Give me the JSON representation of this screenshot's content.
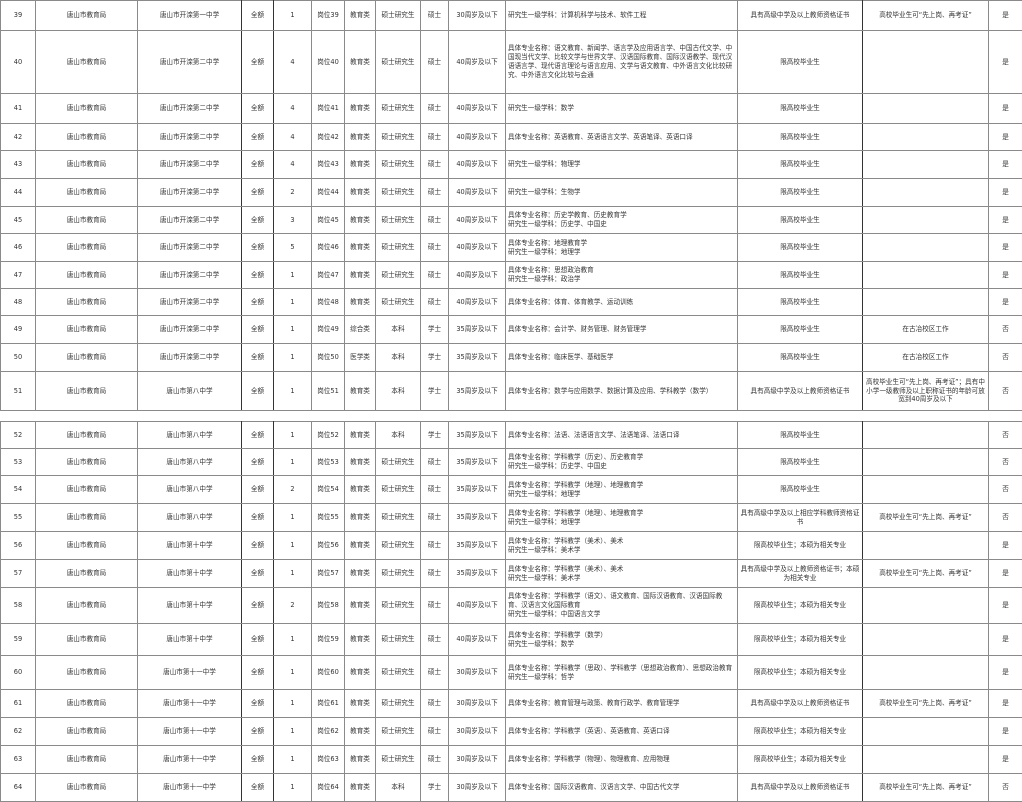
{
  "sections": [
    {
      "rows": [
        {
          "no": "39",
          "dept": "唐山市教育局",
          "unit": "唐山市开滦第一中学",
          "fund": "全额",
          "count": "1",
          "post": "岗位39",
          "type": "教育类",
          "edu": "硕士研究生",
          "degree": "硕士",
          "age": "30周岁及以下",
          "major": "研究生一级学科：计算机科学与技术、软件工程",
          "cond": "具有高级中学及以上教师资格证书",
          "remark": "高校毕业生可“先上岗、再考证”",
          "flag": "是"
        },
        {
          "no": "40",
          "dept": "唐山市教育局",
          "unit": "唐山市开滦第二中学",
          "fund": "全额",
          "count": "4",
          "post": "岗位40",
          "type": "教育类",
          "edu": "硕士研究生",
          "degree": "硕士",
          "age": "40周岁及以下",
          "major": "具体专业名称：语文教育、新闻学、语言学及应用语言学、中国古代文学、中国现当代文学、比较文学与世界文学、汉语国际教育、国际汉语教学、现代汉语语言学、现代语言理论与语言应用、文学与语文教育、中外语言文化比较研究、中外语言文化比较与会通",
          "cond": "限高校毕业生",
          "remark": "",
          "flag": "是"
        },
        {
          "no": "41",
          "dept": "唐山市教育局",
          "unit": "唐山市开滦第二中学",
          "fund": "全额",
          "count": "4",
          "post": "岗位41",
          "type": "教育类",
          "edu": "硕士研究生",
          "degree": "硕士",
          "age": "40周岁及以下",
          "major": "研究生一级学科：数学",
          "cond": "限高校毕业生",
          "remark": "",
          "flag": "是"
        },
        {
          "no": "42",
          "dept": "唐山市教育局",
          "unit": "唐山市开滦第二中学",
          "fund": "全额",
          "count": "4",
          "post": "岗位42",
          "type": "教育类",
          "edu": "硕士研究生",
          "degree": "硕士",
          "age": "40周岁及以下",
          "major": "具体专业名称：英语教育、英语语言文学、英语笔译、英语口译",
          "cond": "限高校毕业生",
          "remark": "",
          "flag": "是"
        },
        {
          "no": "43",
          "dept": "唐山市教育局",
          "unit": "唐山市开滦第二中学",
          "fund": "全额",
          "count": "4",
          "post": "岗位43",
          "type": "教育类",
          "edu": "硕士研究生",
          "degree": "硕士",
          "age": "40周岁及以下",
          "major": "研究生一级学科：物理学",
          "cond": "限高校毕业生",
          "remark": "",
          "flag": "是"
        },
        {
          "no": "44",
          "dept": "唐山市教育局",
          "unit": "唐山市开滦第二中学",
          "fund": "全额",
          "count": "2",
          "post": "岗位44",
          "type": "教育类",
          "edu": "硕士研究生",
          "degree": "硕士",
          "age": "40周岁及以下",
          "major": "研究生一级学科：生物学",
          "cond": "限高校毕业生",
          "remark": "",
          "flag": "是"
        },
        {
          "no": "45",
          "dept": "唐山市教育局",
          "unit": "唐山市开滦第二中学",
          "fund": "全额",
          "count": "3",
          "post": "岗位45",
          "type": "教育类",
          "edu": "硕士研究生",
          "degree": "硕士",
          "age": "40周岁及以下",
          "major": "具体专业名称：历史学教育、历史教育学\n研究生一级学科：历史学、中国史",
          "cond": "限高校毕业生",
          "remark": "",
          "flag": "是"
        },
        {
          "no": "46",
          "dept": "唐山市教育局",
          "unit": "唐山市开滦第二中学",
          "fund": "全额",
          "count": "5",
          "post": "岗位46",
          "type": "教育类",
          "edu": "硕士研究生",
          "degree": "硕士",
          "age": "40周岁及以下",
          "major": "具体专业名称：地理教育学\n研究生一级学科：地理学",
          "cond": "限高校毕业生",
          "remark": "",
          "flag": "是"
        },
        {
          "no": "47",
          "dept": "唐山市教育局",
          "unit": "唐山市开滦第二中学",
          "fund": "全额",
          "count": "1",
          "post": "岗位47",
          "type": "教育类",
          "edu": "硕士研究生",
          "degree": "硕士",
          "age": "40周岁及以下",
          "major": "具体专业名称：思想政治教育\n研究生一级学科：政治学",
          "cond": "限高校毕业生",
          "remark": "",
          "flag": "是"
        },
        {
          "no": "48",
          "dept": "唐山市教育局",
          "unit": "唐山市开滦第二中学",
          "fund": "全额",
          "count": "1",
          "post": "岗位48",
          "type": "教育类",
          "edu": "硕士研究生",
          "degree": "硕士",
          "age": "40周岁及以下",
          "major": "具体专业名称：体育、体育教学、运动训练",
          "cond": "限高校毕业生",
          "remark": "",
          "flag": "是"
        },
        {
          "no": "49",
          "dept": "唐山市教育局",
          "unit": "唐山市开滦第二中学",
          "fund": "全额",
          "count": "1",
          "post": "岗位49",
          "type": "综合类",
          "edu": "本科",
          "degree": "学士",
          "age": "35周岁及以下",
          "major": "具体专业名称：会计学、财务管理、财务管理学",
          "cond": "限高校毕业生",
          "remark": "在古冶校区工作",
          "flag": "否"
        },
        {
          "no": "50",
          "dept": "唐山市教育局",
          "unit": "唐山市开滦第二中学",
          "fund": "全额",
          "count": "1",
          "post": "岗位50",
          "type": "医学类",
          "edu": "本科",
          "degree": "学士",
          "age": "35周岁及以下",
          "major": "具体专业名称：临床医学、基础医学",
          "cond": "限高校毕业生",
          "remark": "在古冶校区工作",
          "flag": "否"
        },
        {
          "no": "51",
          "dept": "唐山市教育局",
          "unit": "唐山市第八中学",
          "fund": "全额",
          "count": "1",
          "post": "岗位51",
          "type": "教育类",
          "edu": "本科",
          "degree": "学士",
          "age": "35周岁及以下",
          "major": "具体专业名称：数学与应用数学、数据计算及应用、学科教学（数学）",
          "cond": "具有高级中学及以上教师资格证书",
          "remark": "高校毕业生可“先上岗、再考证”；具有中小学一级教师及以上职称证书的年龄可放宽到40周岁及以下",
          "flag": "否"
        }
      ]
    },
    {
      "rows": [
        {
          "no": "52",
          "dept": "唐山市教育局",
          "unit": "唐山市第八中学",
          "fund": "全额",
          "count": "1",
          "post": "岗位52",
          "type": "教育类",
          "edu": "本科",
          "degree": "学士",
          "age": "35周岁及以下",
          "major": "具体专业名称：法语、法语语言文学、法语笔译、法语口译",
          "cond": "限高校毕业生",
          "remark": "",
          "flag": "否"
        },
        {
          "no": "53",
          "dept": "唐山市教育局",
          "unit": "唐山市第八中学",
          "fund": "全额",
          "count": "1",
          "post": "岗位53",
          "type": "教育类",
          "edu": "硕士研究生",
          "degree": "硕士",
          "age": "35周岁及以下",
          "major": "具体专业名称：学科教学（历史）、历史教育学\n研究生一级学科：历史学、中国史",
          "cond": "限高校毕业生",
          "remark": "",
          "flag": "否"
        },
        {
          "no": "54",
          "dept": "唐山市教育局",
          "unit": "唐山市第八中学",
          "fund": "全额",
          "count": "2",
          "post": "岗位54",
          "type": "教育类",
          "edu": "硕士研究生",
          "degree": "硕士",
          "age": "35周岁及以下",
          "major": "具体专业名称：学科教学（地理）、地理教育学\n研究生一级学科：地理学",
          "cond": "限高校毕业生",
          "remark": "",
          "flag": "否"
        },
        {
          "no": "55",
          "dept": "唐山市教育局",
          "unit": "唐山市第八中学",
          "fund": "全额",
          "count": "1",
          "post": "岗位55",
          "type": "教育类",
          "edu": "硕士研究生",
          "degree": "硕士",
          "age": "35周岁及以下",
          "major": "具体专业名称：学科教学（地理）、地理教育学\n研究生一级学科：地理学",
          "cond": "具有高级中学及以上相应学科教师资格证书",
          "remark": "高校毕业生可“先上岗、再考证”",
          "flag": "否"
        },
        {
          "no": "56",
          "dept": "唐山市教育局",
          "unit": "唐山市第十中学",
          "fund": "全额",
          "count": "1",
          "post": "岗位56",
          "type": "教育类",
          "edu": "硕士研究生",
          "degree": "硕士",
          "age": "35周岁及以下",
          "major": "具体专业名称：学科教学（美术）、美术\n研究生一级学科：美术学",
          "cond": "限高校毕业生；本硕为相关专业",
          "remark": "",
          "flag": "是"
        },
        {
          "no": "57",
          "dept": "唐山市教育局",
          "unit": "唐山市第十中学",
          "fund": "全额",
          "count": "1",
          "post": "岗位57",
          "type": "教育类",
          "edu": "硕士研究生",
          "degree": "硕士",
          "age": "35周岁及以下",
          "major": "具体专业名称：学科教学（美术）、美术\n研究生一级学科：美术学",
          "cond": "具有高级中学及以上教师资格证书；本硕为相关专业",
          "remark": "高校毕业生可“先上岗、再考证”",
          "flag": "是"
        },
        {
          "no": "58",
          "dept": "唐山市教育局",
          "unit": "唐山市第十中学",
          "fund": "全额",
          "count": "2",
          "post": "岗位58",
          "type": "教育类",
          "edu": "硕士研究生",
          "degree": "硕士",
          "age": "40周岁及以下",
          "major": "具体专业名称：学科教学（语文）、语文教育、国际汉语教育、汉语国际教育、汉语言文化国际教育\n研究生一级学科：中国语言文学",
          "cond": "限高校毕业生；本硕为相关专业",
          "remark": "",
          "flag": "是"
        },
        {
          "no": "59",
          "dept": "唐山市教育局",
          "unit": "唐山市第十中学",
          "fund": "全额",
          "count": "1",
          "post": "岗位59",
          "type": "教育类",
          "edu": "硕士研究生",
          "degree": "硕士",
          "age": "40周岁及以下",
          "major": "具体专业名称：学科教学（数学）\n研究生一级学科：数学",
          "cond": "限高校毕业生；本硕为相关专业",
          "remark": "",
          "flag": "是"
        },
        {
          "no": "60",
          "dept": "唐山市教育局",
          "unit": "唐山市第十一中学",
          "fund": "全额",
          "count": "1",
          "post": "岗位60",
          "type": "教育类",
          "edu": "硕士研究生",
          "degree": "硕士",
          "age": "30周岁及以下",
          "major": "具体专业名称：学科教学（思政）、学科教学（思想政治教育）、思想政治教育\n研究生一级学科：哲学",
          "cond": "限高校毕业生；本硕为相关专业",
          "remark": "",
          "flag": "是"
        },
        {
          "no": "61",
          "dept": "唐山市教育局",
          "unit": "唐山市第十一中学",
          "fund": "全额",
          "count": "1",
          "post": "岗位61",
          "type": "教育类",
          "edu": "硕士研究生",
          "degree": "硕士",
          "age": "30周岁及以下",
          "major": "具体专业名称：教育管理与政策、教育行政学、教育管理学",
          "cond": "具有高级中学及以上教师资格证书",
          "remark": "高校毕业生可“先上岗、再考证”",
          "flag": "是"
        },
        {
          "no": "62",
          "dept": "唐山市教育局",
          "unit": "唐山市第十一中学",
          "fund": "全额",
          "count": "1",
          "post": "岗位62",
          "type": "教育类",
          "edu": "硕士研究生",
          "degree": "硕士",
          "age": "30周岁及以下",
          "major": "具体专业名称：学科教学（英语）、英语教育、英语口译",
          "cond": "限高校毕业生；本硕为相关专业",
          "remark": "",
          "flag": "是"
        },
        {
          "no": "63",
          "dept": "唐山市教育局",
          "unit": "唐山市第十一中学",
          "fund": "全额",
          "count": "1",
          "post": "岗位63",
          "type": "教育类",
          "edu": "硕士研究生",
          "degree": "硕士",
          "age": "30周岁及以下",
          "major": "具体专业名称：学科教学（物理）、物理教育、应用物理",
          "cond": "限高校毕业生；本硕为相关专业",
          "remark": "",
          "flag": "是"
        },
        {
          "no": "64",
          "dept": "唐山市教育局",
          "unit": "唐山市第十一中学",
          "fund": "全额",
          "count": "1",
          "post": "岗位64",
          "type": "教育类",
          "edu": "本科",
          "degree": "学士",
          "age": "30周岁及以下",
          "major": "具体专业名称：国际汉语教育、汉语言文学、中国古代文学",
          "cond": "具有高级中学及以上教师资格证书",
          "remark": "高校毕业生可“先上岗、再考证”",
          "flag": "否"
        }
      ]
    }
  ]
}
